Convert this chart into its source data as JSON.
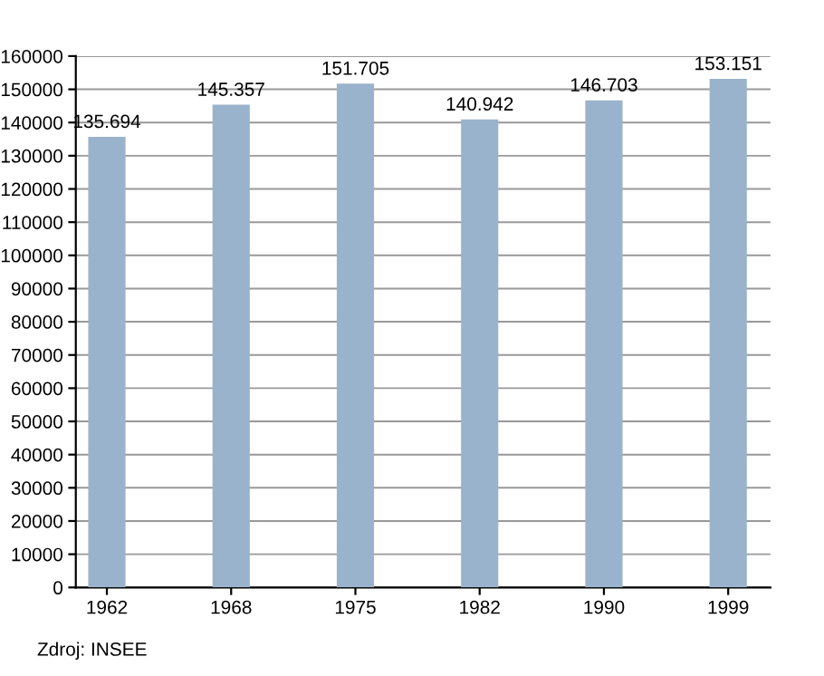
{
  "chart_data": {
    "type": "bar",
    "categories": [
      "1962",
      "1968",
      "1975",
      "1982",
      "1990",
      "1999"
    ],
    "values": [
      135694,
      145357,
      151705,
      140942,
      146703,
      153151
    ],
    "value_labels": [
      "135.694",
      "145.357",
      "151.705",
      "140.942",
      "146.703",
      "153.151"
    ],
    "color": "#9ab3cc",
    "ylim": [
      0,
      160000
    ],
    "yticks": [
      0,
      10000,
      20000,
      30000,
      40000,
      50000,
      60000,
      70000,
      80000,
      90000,
      100000,
      110000,
      120000,
      130000,
      140000,
      150000,
      160000
    ],
    "grid": "y",
    "legend": false,
    "annotations": [
      "Zdroj: INSEE"
    ]
  }
}
